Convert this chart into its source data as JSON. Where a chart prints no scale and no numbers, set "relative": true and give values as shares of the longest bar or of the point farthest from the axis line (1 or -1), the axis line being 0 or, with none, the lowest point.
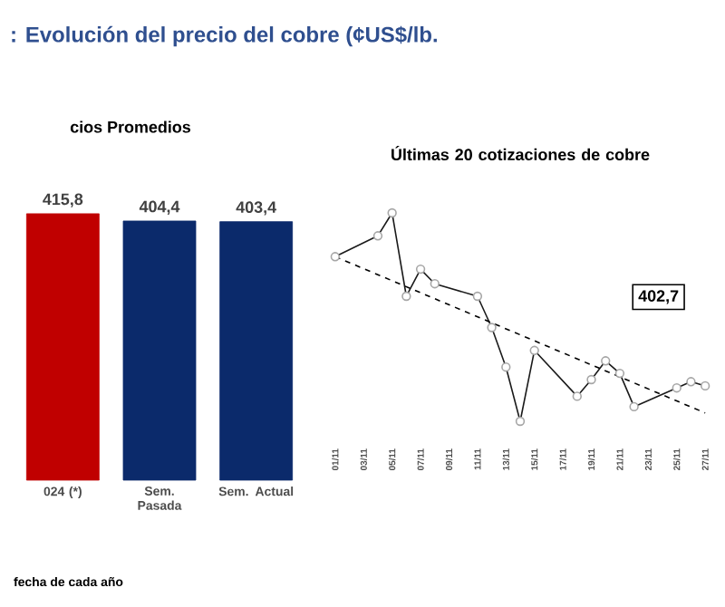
{
  "chart_data": [
    {
      "type": "bar",
      "title": ": Evolución del precio del cobre (¢US$/lb.",
      "subtitle": "cios Promedios",
      "categories": [
        "024 (*)",
        "Sem. Pasada",
        "Sem. Actual"
      ],
      "values": [
        415.8,
        404.4,
        403.4
      ],
      "value_labels": [
        "415,8",
        "404,4",
        "403,4"
      ],
      "colors": [
        "#c00000",
        "#0b2a6b",
        "#0b2a6b"
      ],
      "tick_labels": "x",
      "annotations": [
        "fecha de cada año"
      ]
    },
    {
      "type": "line",
      "title": "Últimas 20 cotizaciones de cobre",
      "relative": true,
      "marker": "circle",
      "tick_labels": "x",
      "xlim": [
        "--11-01",
        "--11-27"
      ],
      "xticks": [
        {
          "value": "--11-01",
          "label": "01/11"
        },
        {
          "value": "--11-03",
          "label": "03/11"
        },
        {
          "value": "--11-05",
          "label": "05/11"
        },
        {
          "value": "--11-07",
          "label": "07/11"
        },
        {
          "value": "--11-09",
          "label": "09/11"
        },
        {
          "value": "--11-11",
          "label": "11/11"
        },
        {
          "value": "--11-13",
          "label": "13/11"
        },
        {
          "value": "--11-15",
          "label": "15/11"
        },
        {
          "value": "--11-17",
          "label": "17/11"
        },
        {
          "value": "--11-19",
          "label": "19/11"
        },
        {
          "value": "--11-21",
          "label": "21/11"
        },
        {
          "value": "--11-23",
          "label": "23/11"
        },
        {
          "value": "--11-25",
          "label": "25/11"
        },
        {
          "value": "--11-27",
          "label": "27/11"
        }
      ],
      "series": [
        {
          "color": "#1a1a1a",
          "x": [
            "--11-01",
            "--11-04",
            "--11-05",
            "--11-06",
            "--11-07",
            "--11-08",
            "--11-11",
            "--11-12",
            "--11-13",
            "--11-14",
            "--11-15",
            "--11-18",
            "--11-19",
            "--11-20",
            "--11-21",
            "--11-22",
            "--11-25",
            "--11-26",
            "--11-27"
          ],
          "values": [
            0.79,
            0.89,
            1,
            0.6,
            0.73,
            0.66,
            0.6,
            0.45,
            0.26,
            0,
            0.34,
            0.12,
            0.2,
            0.29,
            0.23,
            0.07,
            0.16,
            0.19,
            0.17
          ]
        },
        {
          "type": "line",
          "color": "#000000",
          "line_style": "dashed",
          "marker": "none",
          "x": [
            "--11-01",
            "--11-27"
          ],
          "values": [
            0.79,
            0.04
          ]
        }
      ],
      "annotations": [
        "402,7"
      ]
    }
  ]
}
